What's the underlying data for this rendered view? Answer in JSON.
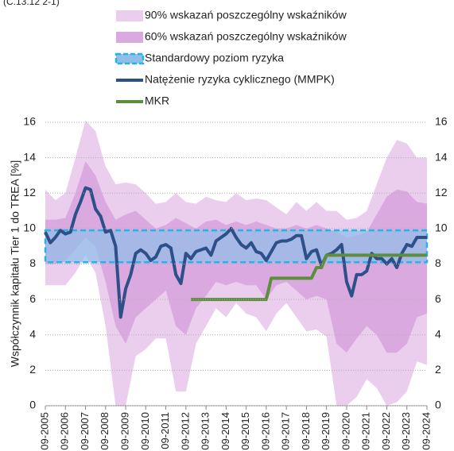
{
  "chart_data": {
    "type": "line",
    "subtitle": "(C.13.12 2-1)",
    "ylabel": "Współczynnik kapitału Tier 1 do TREA [%]",
    "xlim": [
      2005.75,
      2024.75
    ],
    "xticks": [
      {
        "value": 2005.75,
        "label": "09-2005"
      },
      {
        "value": 2006.75,
        "label": "09-2006"
      },
      {
        "value": 2007.75,
        "label": "09-2007"
      },
      {
        "value": 2008.75,
        "label": "09-2008"
      },
      {
        "value": 2009.75,
        "label": "09-2009"
      },
      {
        "value": 2010.75,
        "label": "09-2010"
      },
      {
        "value": 2011.75,
        "label": "09-2011"
      },
      {
        "value": 2012.75,
        "label": "09-2012"
      },
      {
        "value": 2013.75,
        "label": "09-2013"
      },
      {
        "value": 2014.75,
        "label": "09-2014"
      },
      {
        "value": 2015.75,
        "label": "09-2015"
      },
      {
        "value": 2016.75,
        "label": "09-2016"
      },
      {
        "value": 2017.75,
        "label": "09-2017"
      },
      {
        "value": 2018.75,
        "label": "09-2018"
      },
      {
        "value": 2019.75,
        "label": "09-2019"
      },
      {
        "value": 2020.75,
        "label": "09-2020"
      },
      {
        "value": 2021.75,
        "label": "09-2021"
      },
      {
        "value": 2022.75,
        "label": "09-2022"
      },
      {
        "value": 2023.75,
        "label": "09-2023"
      },
      {
        "value": 2024.75,
        "label": "09-2024"
      }
    ],
    "ylim": [
      0,
      16
    ],
    "yticks": [
      0,
      2,
      4,
      6,
      8,
      10,
      12,
      14,
      16
    ],
    "y2lim": [
      0,
      16
    ],
    "y2ticks": [
      0,
      2,
      4,
      6,
      8,
      10,
      12,
      14,
      16
    ],
    "grid": true,
    "series": [
      {
        "name": "90% wskazań poszczególny wskaźników",
        "type": "band",
        "color": "#ebcdee",
        "x": [
          2005.75,
          2006.25,
          2006.75,
          2007.25,
          2007.75,
          2008.25,
          2008.75,
          2009.25,
          2009.75,
          2010.25,
          2010.75,
          2011.25,
          2011.75,
          2012.25,
          2012.75,
          2013.25,
          2013.75,
          2014.25,
          2014.75,
          2015.25,
          2015.75,
          2016.25,
          2016.75,
          2017.25,
          2017.75,
          2018.25,
          2018.75,
          2019.25,
          2019.75,
          2020.25,
          2020.75,
          2021.25,
          2021.75,
          2022.25,
          2022.75,
          2023.25,
          2023.75,
          2024.25,
          2024.75
        ],
        "low": [
          6.8,
          6.8,
          6.8,
          7.5,
          8.5,
          7.5,
          4.5,
          0,
          0,
          2.8,
          3.2,
          3.8,
          3.8,
          0.8,
          0.8,
          3.5,
          4.5,
          5.5,
          5.0,
          5.8,
          5.2,
          5.0,
          4.2,
          5.2,
          5.8,
          5.0,
          4.2,
          4.3,
          3.9,
          0,
          0,
          0.5,
          1.5,
          1.0,
          0,
          0.2,
          0.8,
          2.5,
          2.3
        ],
        "high": [
          12.2,
          11.6,
          12.0,
          14.0,
          16.1,
          15.5,
          13.5,
          12.5,
          12.6,
          12.5,
          12.0,
          11.4,
          11.5,
          12.0,
          11.5,
          11.4,
          11.8,
          11.6,
          11.5,
          12.0,
          11.6,
          11.7,
          11.6,
          11.2,
          10.8,
          11.5,
          11.0,
          11.5,
          11.0,
          11.0,
          10.5,
          10.6,
          11.0,
          12.5,
          14.0,
          15.0,
          14.8,
          14.0,
          14.0
        ]
      },
      {
        "name": "60% wskazań poszczególny wskaźników",
        "type": "band",
        "color": "#daa9df",
        "x": [
          2005.75,
          2006.25,
          2006.75,
          2007.25,
          2007.75,
          2008.25,
          2008.75,
          2009.25,
          2009.75,
          2010.25,
          2010.75,
          2011.25,
          2011.75,
          2012.25,
          2012.75,
          2013.25,
          2013.75,
          2014.25,
          2014.75,
          2015.25,
          2015.75,
          2016.25,
          2016.75,
          2017.25,
          2017.75,
          2018.25,
          2018.75,
          2019.25,
          2019.75,
          2020.25,
          2020.75,
          2021.25,
          2021.75,
          2022.25,
          2022.75,
          2023.25,
          2023.75,
          2024.25,
          2024.75
        ],
        "low": [
          8.0,
          8.0,
          8.2,
          8.8,
          9.5,
          9.0,
          7.0,
          4.5,
          3.5,
          5.0,
          5.5,
          6.0,
          6.5,
          4.5,
          4.0,
          5.5,
          6.2,
          7.0,
          6.8,
          7.0,
          6.8,
          6.8,
          6.0,
          6.8,
          7.0,
          6.5,
          6.0,
          6.2,
          6.0,
          3.5,
          3.0,
          3.8,
          4.5,
          4.0,
          3.0,
          3.0,
          3.5,
          5.0,
          5.2
        ],
        "high": [
          10.5,
          10.5,
          10.6,
          12.0,
          13.8,
          13.0,
          11.5,
          10.5,
          10.8,
          11.0,
          10.5,
          10.0,
          10.2,
          10.6,
          10.3,
          10.0,
          10.4,
          10.5,
          10.2,
          10.4,
          10.2,
          10.4,
          10.2,
          10.0,
          10.0,
          10.2,
          10.0,
          10.2,
          10.0,
          9.8,
          9.5,
          9.6,
          9.8,
          10.8,
          11.8,
          12.2,
          12.1,
          11.5,
          11.4
        ]
      },
      {
        "name": "Standardowy poziom ryzyka",
        "type": "range",
        "color": "#8fbfe8",
        "edge": "#22b4ea",
        "low": 8.1,
        "high": 9.9
      },
      {
        "name": "Natężenie ryzyka cyklicznego (MMPK)",
        "type": "line",
        "color": "#2e5089",
        "x": [
          2005.75,
          2006,
          2006.25,
          2006.5,
          2006.75,
          2007,
          2007.25,
          2007.5,
          2007.75,
          2008,
          2008.25,
          2008.5,
          2008.75,
          2009,
          2009.25,
          2009.5,
          2009.75,
          2010,
          2010.25,
          2010.5,
          2010.75,
          2011,
          2011.25,
          2011.5,
          2011.75,
          2012,
          2012.25,
          2012.5,
          2012.75,
          2013,
          2013.25,
          2013.5,
          2013.75,
          2014,
          2014.25,
          2014.5,
          2014.75,
          2015,
          2015.25,
          2015.5,
          2015.75,
          2016,
          2016.25,
          2016.5,
          2016.75,
          2017,
          2017.25,
          2017.5,
          2017.75,
          2018,
          2018.25,
          2018.5,
          2018.75,
          2019,
          2019.25,
          2019.5,
          2019.75,
          2020,
          2020.25,
          2020.5,
          2020.75,
          2021,
          2021.25,
          2021.5,
          2021.75,
          2022,
          2022.25,
          2022.5,
          2022.75,
          2023,
          2023.25,
          2023.5,
          2023.75,
          2024,
          2024.25,
          2024.5,
          2024.75
        ],
        "values": [
          9.8,
          9.2,
          9.5,
          9.9,
          9.7,
          9.8,
          10.8,
          11.5,
          12.3,
          12.2,
          11.1,
          10.7,
          9.8,
          9.9,
          9.0,
          5.0,
          6.6,
          7.4,
          8.6,
          8.8,
          8.6,
          8.2,
          8.4,
          9.0,
          9.1,
          8.9,
          7.4,
          6.9,
          8.6,
          8.3,
          8.7,
          8.8,
          8.9,
          8.5,
          9.3,
          9.5,
          9.7,
          10.0,
          9.5,
          9.1,
          8.9,
          9.2,
          8.7,
          8.6,
          8.2,
          8.7,
          9.2,
          9.3,
          9.3,
          9.4,
          9.6,
          9.6,
          8.3,
          8.7,
          8.8,
          7.9,
          8.5,
          8.6,
          8.8,
          9.1,
          7.0,
          6.2,
          7.4,
          7.4,
          7.6,
          8.6,
          8.3,
          8.3,
          8.0,
          8.3,
          7.8,
          8.6,
          9.1,
          9.0,
          9.5,
          9.5,
          9.5
        ]
      },
      {
        "name": "MKR",
        "type": "line",
        "color": "#5b8f3c",
        "x": [
          2013.0,
          2016.75,
          2017.0,
          2019.0,
          2019.25,
          2019.5,
          2019.75,
          2024.75
        ],
        "values": [
          6.0,
          6.0,
          7.2,
          7.2,
          7.8,
          7.8,
          8.5,
          8.5
        ]
      }
    ]
  }
}
